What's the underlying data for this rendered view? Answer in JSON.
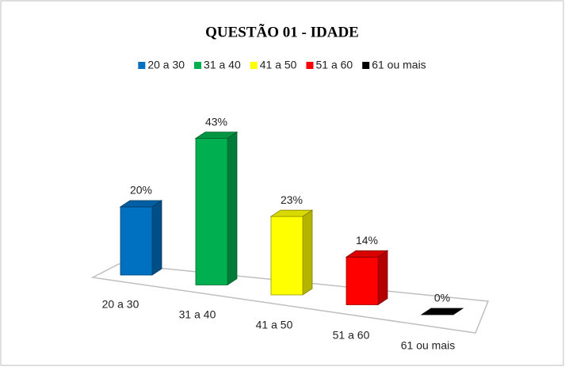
{
  "chart_data": {
    "type": "bar3d",
    "title": "QUESTÃO 01 - IDADE",
    "categories": [
      "20 a 30",
      "31 a 40",
      "41 a 50",
      "51 a 60",
      "61 ou mais"
    ],
    "values": [
      20,
      43,
      23,
      14,
      0
    ],
    "value_labels": [
      "20%",
      "43%",
      "23%",
      "14%",
      "0%"
    ],
    "colors": [
      "#0070c0",
      "#00b050",
      "#ffff00",
      "#ff0000",
      "#000000"
    ],
    "legend": "top"
  }
}
